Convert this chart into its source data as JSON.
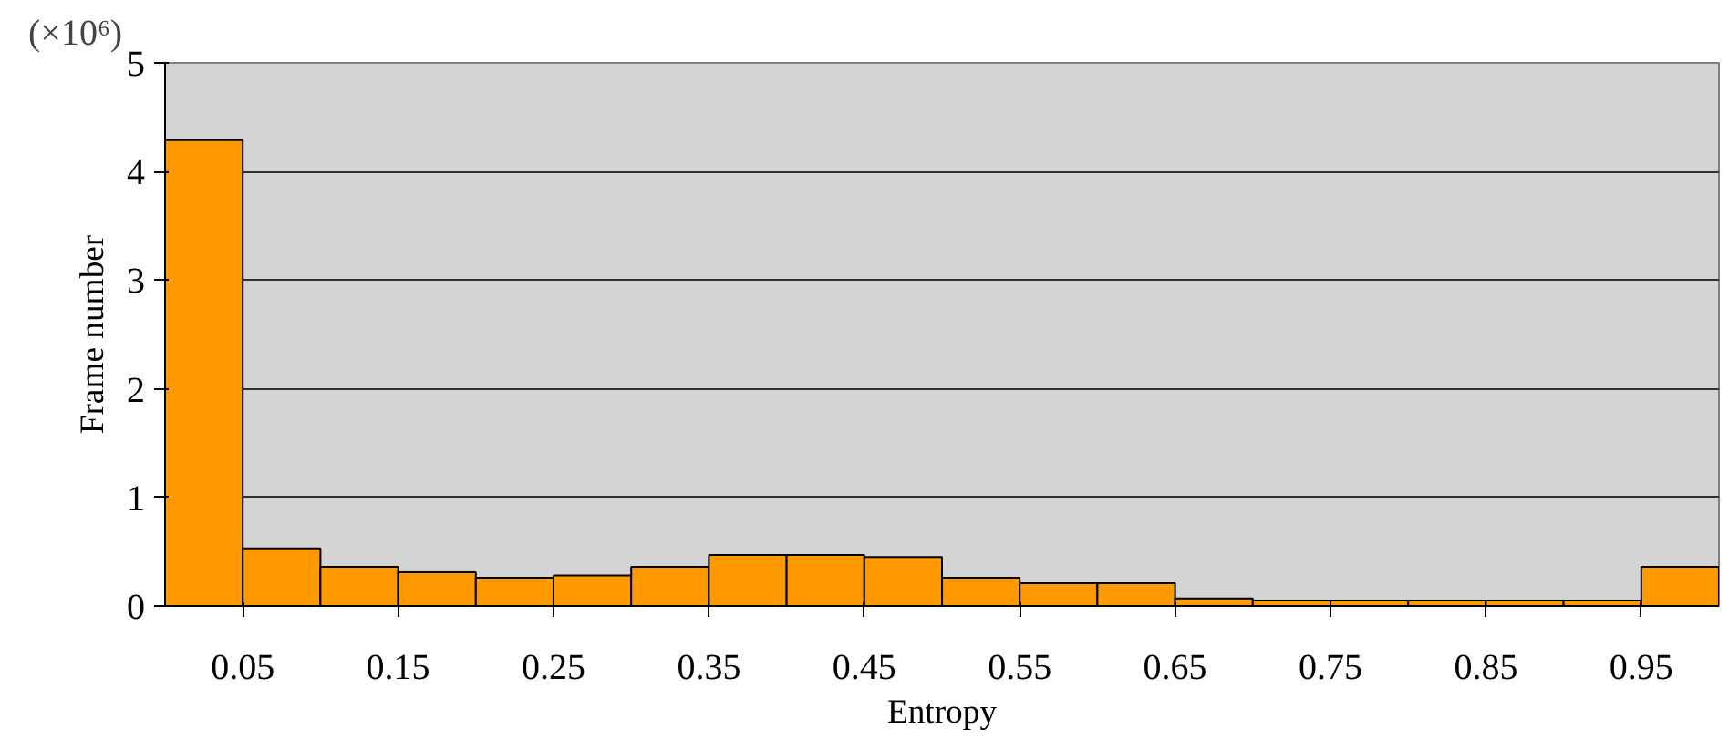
{
  "chart_data": {
    "type": "histogram",
    "xlabel": "Entropy",
    "ylabel": "Frame number",
    "annotations": [
      "(×10⁶)"
    ],
    "bins": [
      0,
      0.05,
      0.1,
      0.15,
      0.2,
      0.25,
      0.3,
      0.35,
      0.4,
      0.45,
      0.5,
      0.55,
      0.6,
      0.65,
      0.7,
      0.75,
      0.8,
      0.85,
      0.9,
      0.95,
      1.0
    ],
    "values": [
      4.29,
      0.53,
      0.36,
      0.31,
      0.26,
      0.28,
      0.36,
      0.47,
      0.47,
      0.45,
      0.26,
      0.21,
      0.21,
      0.07,
      0.05,
      0.05,
      0.05,
      0.05,
      0.05,
      0.36
    ],
    "color": "#ff9900",
    "xlim": [
      0,
      1
    ],
    "ylim": [
      0,
      5
    ],
    "xticks": [
      0.05,
      0.15,
      0.25,
      0.35,
      0.45,
      0.55,
      0.65,
      0.75,
      0.85,
      0.95
    ],
    "yticks": [
      0,
      1,
      2,
      3,
      4,
      5
    ],
    "grid": "y"
  }
}
